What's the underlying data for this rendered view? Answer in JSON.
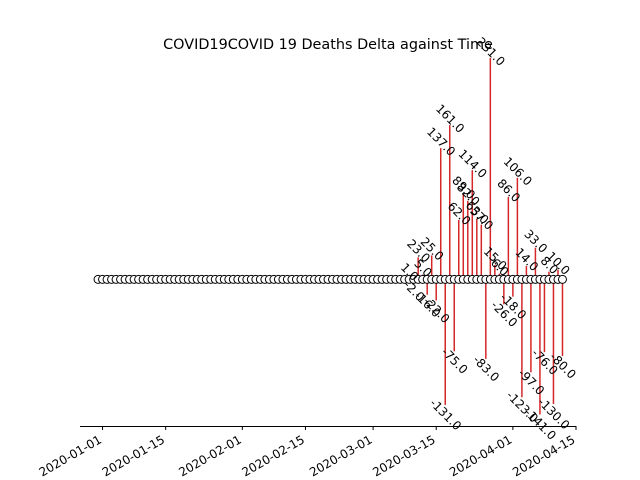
{
  "chart_data": {
    "type": "stem",
    "title": "COVID19COVID 19 Deaths Delta against Time",
    "xlabel": "",
    "ylabel": "",
    "x_ticks": [
      "2020-01-01",
      "2020-01-15",
      "2020-02-01",
      "2020-02-15",
      "2020-03-01",
      "2020-03-15",
      "2020-04-01",
      "2020-04-15"
    ],
    "x_range": [
      "2019-12-27",
      "2020-04-15"
    ],
    "y_range": [
      -153,
      231
    ],
    "grid": false,
    "legend": "none",
    "colors": {
      "stem": "#d62728",
      "marker_fill": "#ffffff",
      "marker_edge": "#000000",
      "axis": "#000000"
    },
    "series": [
      {
        "x": [
          "2020-03-09",
          "2020-03-10",
          "2020-03-11",
          "2020-03-12",
          "2020-03-13",
          "2020-03-14",
          "2020-03-15",
          "2020-03-16",
          "2020-03-17",
          "2020-03-18",
          "2020-03-19",
          "2020-03-20",
          "2020-03-21",
          "2020-03-22",
          "2020-03-23",
          "2020-03-24",
          "2020-03-25",
          "2020-03-26",
          "2020-03-27",
          "2020-03-28",
          "2020-03-29",
          "2020-03-30",
          "2020-03-31",
          "2020-04-01",
          "2020-04-02",
          "2020-04-03",
          "2020-04-04",
          "2020-04-05",
          "2020-04-06",
          "2020-04-07",
          "2020-04-08",
          "2020-04-09",
          "2020-04-10",
          "2020-04-11",
          "2020-04-12"
        ],
        "values": [
          1.0,
          -2.0,
          23.0,
          5.0,
          -16.0,
          25.0,
          -22.0,
          137.0,
          -131.0,
          161.0,
          -75.0,
          62.0,
          89.0,
          82.0,
          114.0,
          63.0,
          57.0,
          -83.0,
          231.0,
          15.0,
          6.0,
          -26.0,
          86.0,
          -18.0,
          106.0,
          -123.0,
          14.0,
          -97.0,
          33.0,
          -141.0,
          -76.0,
          8.0,
          -130.0,
          10.0,
          -80.0
        ]
      }
    ]
  }
}
